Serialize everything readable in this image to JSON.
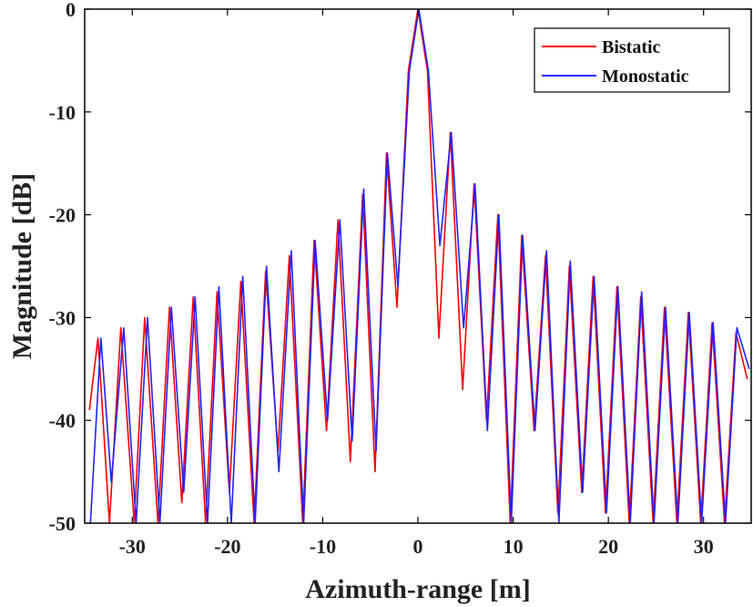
{
  "chart_data": {
    "type": "line",
    "xlabel": "Azimuth-range [m]",
    "ylabel": "Magnitude [dB]",
    "xlim": [
      -35,
      35
    ],
    "ylim": [
      -50,
      0
    ],
    "xticks": [
      -30,
      -20,
      -10,
      0,
      10,
      20,
      30
    ],
    "yticks": [
      0,
      -10,
      -20,
      -30,
      -40,
      -50
    ],
    "xtick_labels": [
      "-30",
      "-20",
      "-10",
      "0",
      "10",
      "20",
      "30"
    ],
    "ytick_labels": [
      "0",
      "-10",
      "-20",
      "-30",
      "-40",
      "-50"
    ],
    "grid": false,
    "legend_position": "top-right",
    "series": [
      {
        "name": "Bistatic",
        "color": "#ff0000",
        "x": [
          -34.5,
          -33.6,
          -32.4,
          -31.2,
          -29.8,
          -28.7,
          -27.3,
          -26.1,
          -24.8,
          -23.6,
          -22.3,
          -21.1,
          -19.8,
          -18.6,
          -17.2,
          -16.0,
          -14.7,
          -13.5,
          -12.1,
          -10.9,
          -9.6,
          -8.4,
          -7.1,
          -5.8,
          -4.5,
          -3.3,
          -2.2,
          -1.0,
          0.0,
          1.0,
          2.2,
          3.4,
          4.7,
          5.9,
          7.2,
          8.4,
          9.7,
          10.9,
          12.2,
          13.4,
          14.7,
          15.9,
          17.2,
          18.4,
          19.7,
          20.9,
          22.2,
          23.4,
          24.7,
          25.9,
          27.2,
          28.4,
          29.7,
          30.9,
          32.2,
          33.4,
          34.6
        ],
        "y": [
          -39,
          -32,
          -50,
          -31,
          -50,
          -30,
          -50,
          -29,
          -48,
          -28,
          -50,
          -27.5,
          -47,
          -26.5,
          -50,
          -25.5,
          -43,
          -24,
          -50,
          -22.5,
          -41,
          -20.5,
          -44,
          -18,
          -45,
          -14,
          -29,
          -6,
          0,
          -6,
          -32,
          -12,
          -37,
          -17,
          -40,
          -20,
          -50,
          -22,
          -41,
          -24,
          -49,
          -25,
          -47,
          -26,
          -49,
          -27,
          -50,
          -28,
          -50,
          -29,
          -50,
          -29.5,
          -50,
          -30.5,
          -50,
          -31.5,
          -36
        ]
      },
      {
        "name": "Monostatic",
        "color": "#2222ff",
        "x": [
          -34.4,
          -33.3,
          -32.2,
          -30.9,
          -29.6,
          -28.4,
          -27.1,
          -25.9,
          -24.6,
          -23.4,
          -22.1,
          -20.9,
          -19.6,
          -18.4,
          -17.1,
          -15.9,
          -14.6,
          -13.3,
          -12.0,
          -10.8,
          -9.5,
          -8.2,
          -6.9,
          -5.7,
          -4.4,
          -3.2,
          -2.1,
          -0.9,
          0.1,
          1.1,
          2.3,
          3.5,
          4.8,
          6.0,
          7.3,
          8.5,
          9.8,
          11.0,
          12.3,
          13.5,
          14.8,
          16.0,
          17.3,
          18.5,
          19.8,
          21.0,
          22.3,
          23.5,
          24.8,
          26.0,
          27.3,
          28.5,
          29.8,
          31.0,
          32.3,
          33.5,
          34.8
        ],
        "y": [
          -50,
          -32,
          -46,
          -31,
          -50,
          -30,
          -50,
          -29,
          -47,
          -28,
          -50,
          -27,
          -50,
          -26,
          -50,
          -25,
          -45,
          -23.5,
          -50,
          -22.5,
          -40,
          -20.5,
          -42,
          -17.5,
          -43,
          -14,
          -27,
          -6,
          0,
          -6,
          -23,
          -12,
          -31,
          -17,
          -41,
          -20,
          -50,
          -22,
          -41,
          -23.5,
          -50,
          -24.5,
          -47,
          -26,
          -49,
          -27,
          -50,
          -27.5,
          -50,
          -29,
          -50,
          -29.5,
          -50,
          -30.5,
          -50,
          -31,
          -35
        ]
      }
    ]
  }
}
